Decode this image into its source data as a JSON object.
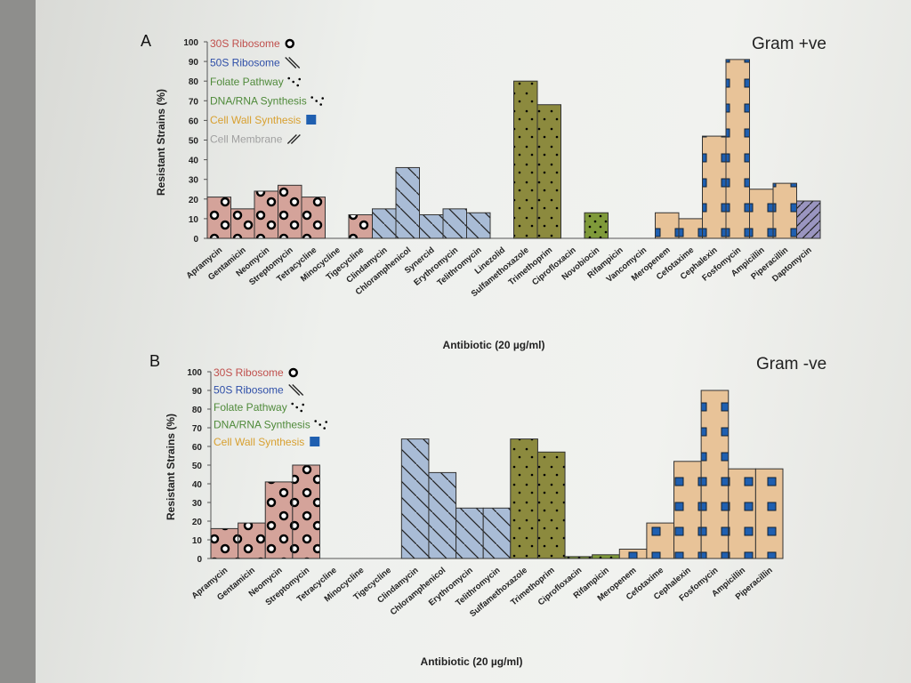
{
  "colors": {
    "r30s": "#d4a39a",
    "r50s": "#a9bcd6",
    "folate": "#8c8a3e",
    "dna": "#7f9a3a",
    "wall": "#e8c398",
    "membrane": "#9a95c0",
    "square": "#1f5fb0",
    "leg30s": "#c0504d",
    "leg50s": "#2f4fa8",
    "legFolate": "#4f8a3a",
    "legDna": "#4f8a3a",
    "legWall": "#d8a030",
    "legMem": "#a0a0a0"
  },
  "chart_data": [
    {
      "type": "bar",
      "panel": "A",
      "title": "Gram +ve",
      "xlabel": "Antibiotic (20 µg/ml)",
      "ylabel": "Resistant Strains (%)",
      "ylim": [
        0,
        100
      ],
      "yticks": [
        "0",
        "10",
        "20",
        "30",
        "40",
        "50",
        "60",
        "70",
        "80",
        "90",
        "100"
      ],
      "legend": [
        "30S Ribosome",
        "50S Ribosome",
        "Folate Pathway",
        "DNA/RNA Synthesis",
        "Cell Wall Synthesis",
        "Cell Membrane"
      ],
      "legend_keys": [
        "r30s",
        "r50s",
        "folate",
        "dna",
        "wall",
        "membrane"
      ],
      "categories": [
        "Apramycin",
        "Gentamicin",
        "Neomycin",
        "Streptomycin",
        "Tetracycline",
        "Minocycline",
        "Tigecycline",
        "Clindamycin",
        "Chloramphenicol",
        "Synercid",
        "Erythromycin",
        "Telithromycin",
        "Linezolid",
        "Sulfamethoxazole",
        "Trimethoprim",
        "Ciprofloxacin",
        "Novobiocin",
        "Rifampicin",
        "Vancomycin",
        "Meropenem",
        "Cefotaxime",
        "Cephalexin",
        "Fosfomycin",
        "Ampicillin",
        "Piperacillin",
        "Daptomycin"
      ],
      "classes": [
        "r30s",
        "r30s",
        "r30s",
        "r30s",
        "r30s",
        "r30s",
        "r30s",
        "r50s",
        "r50s",
        "r50s",
        "r50s",
        "r50s",
        "r50s",
        "folate",
        "folate",
        "dna",
        "dna",
        "dna",
        "wall",
        "wall",
        "wall",
        "wall",
        "wall",
        "wall",
        "wall",
        "membrane"
      ],
      "values": [
        21,
        15,
        24,
        27,
        21,
        0,
        12,
        15,
        36,
        12,
        15,
        13,
        0,
        80,
        68,
        0,
        13,
        0,
        0,
        13,
        10,
        52,
        91,
        25,
        28,
        19
      ]
    },
    {
      "type": "bar",
      "panel": "B",
      "title": "Gram -ve",
      "xlabel": "Antibiotic (20 µg/ml)",
      "ylabel": "Resistant Strains (%)",
      "ylim": [
        0,
        100
      ],
      "yticks": [
        "0",
        "10",
        "20",
        "30",
        "40",
        "50",
        "60",
        "70",
        "80",
        "90",
        "100"
      ],
      "legend": [
        "30S Ribosome",
        "50S Ribosome",
        "Folate Pathway",
        "DNA/RNA Synthesis",
        "Cell Wall Synthesis"
      ],
      "legend_keys": [
        "r30s",
        "r50s",
        "folate",
        "dna",
        "wall"
      ],
      "categories": [
        "Apramycin",
        "Gentamicin",
        "Neomycin",
        "Streptomycin",
        "Tetracycline",
        "Minocycline",
        "Tigecycline",
        "Clindamycin",
        "Chloramphenicol",
        "Erythromycin",
        "Telithromycin",
        "Sulfamethoxazole",
        "Trimethoprim",
        "Ciprofloxacin",
        "Rifampicin",
        "Meropenem",
        "Cefotaxime",
        "Cephalexin",
        "Fosfomycin",
        "Ampicillin",
        "Piperacillin"
      ],
      "classes": [
        "r30s",
        "r30s",
        "r30s",
        "r30s",
        "r30s",
        "r30s",
        "r30s",
        "r50s",
        "r50s",
        "r50s",
        "r50s",
        "folate",
        "folate",
        "dna",
        "dna",
        "wall",
        "wall",
        "wall",
        "wall",
        "wall",
        "wall"
      ],
      "values": [
        16,
        19,
        41,
        50,
        0,
        0,
        0,
        64,
        46,
        27,
        27,
        64,
        57,
        1,
        2,
        5,
        19,
        52,
        90,
        48,
        48
      ]
    }
  ],
  "panel_letters": [
    "A",
    "B"
  ]
}
